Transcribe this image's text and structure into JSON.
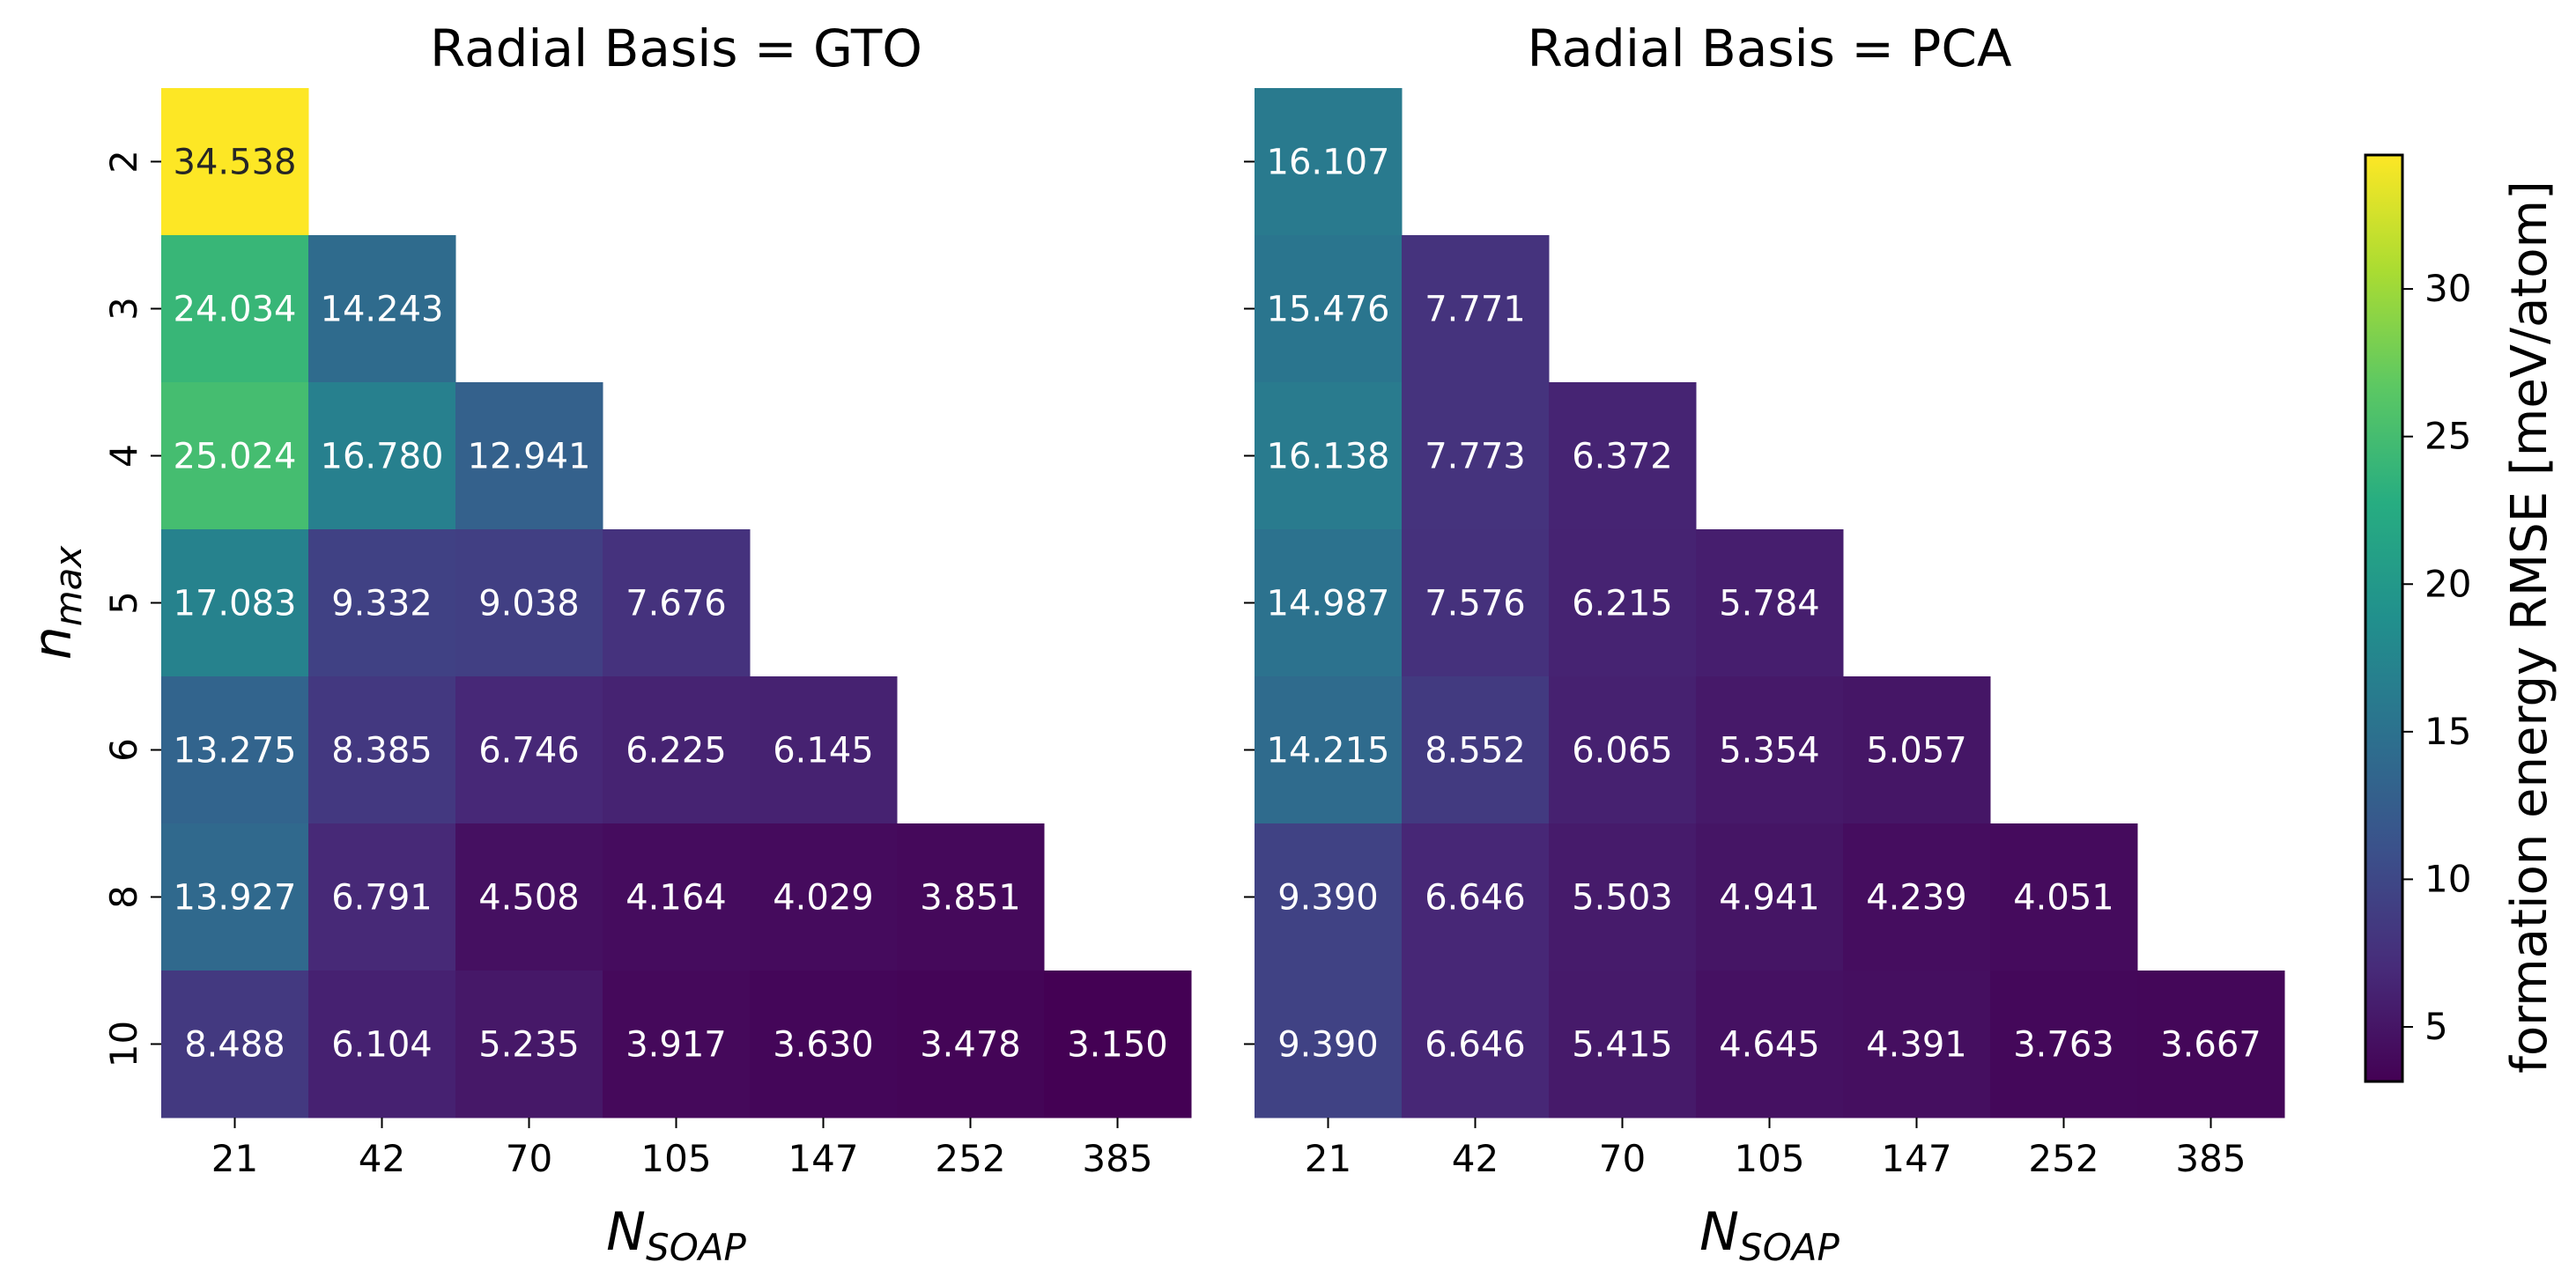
{
  "chart_data": [
    {
      "type": "heatmap",
      "title": "Radial Basis = GTO",
      "xlabel": "N_SOAP",
      "ylabel": "n_max",
      "x_categories": [
        "21",
        "42",
        "70",
        "105",
        "147",
        "252",
        "385"
      ],
      "y_categories": [
        "2",
        "3",
        "4",
        "5",
        "6",
        "8",
        "10"
      ],
      "values": [
        [
          34.538,
          null,
          null,
          null,
          null,
          null,
          null
        ],
        [
          24.034,
          14.243,
          null,
          null,
          null,
          null,
          null
        ],
        [
          25.024,
          16.78,
          12.941,
          null,
          null,
          null,
          null
        ],
        [
          17.083,
          9.332,
          9.038,
          7.676,
          null,
          null,
          null
        ],
        [
          13.275,
          8.385,
          6.746,
          6.225,
          6.145,
          null,
          null
        ],
        [
          13.927,
          6.791,
          4.508,
          4.164,
          4.029,
          3.851,
          null
        ],
        [
          8.488,
          6.104,
          5.235,
          3.917,
          3.63,
          3.478,
          3.15
        ]
      ],
      "value_labels": [
        [
          "34.538",
          null,
          null,
          null,
          null,
          null,
          null
        ],
        [
          "24.034",
          "14.243",
          null,
          null,
          null,
          null,
          null
        ],
        [
          "25.024",
          "16.780",
          "12.941",
          null,
          null,
          null,
          null
        ],
        [
          "17.083",
          "9.332",
          "9.038",
          "7.676",
          null,
          null,
          null
        ],
        [
          "13.275",
          "8.385",
          "6.746",
          "6.225",
          "6.145",
          null,
          null
        ],
        [
          "13.927",
          "6.791",
          "4.508",
          "4.164",
          "4.029",
          "3.851",
          null
        ],
        [
          "8.488",
          "6.104",
          "5.235",
          "3.917",
          "3.630",
          "3.478",
          "3.150"
        ]
      ]
    },
    {
      "type": "heatmap",
      "title": "Radial Basis = PCA",
      "xlabel": "N_SOAP",
      "ylabel": "",
      "x_categories": [
        "21",
        "42",
        "70",
        "105",
        "147",
        "252",
        "385"
      ],
      "y_categories": [
        "2",
        "3",
        "4",
        "5",
        "6",
        "8",
        "10"
      ],
      "values": [
        [
          16.107,
          null,
          null,
          null,
          null,
          null,
          null
        ],
        [
          15.476,
          7.771,
          null,
          null,
          null,
          null,
          null
        ],
        [
          16.138,
          7.773,
          6.372,
          null,
          null,
          null,
          null
        ],
        [
          14.987,
          7.576,
          6.215,
          5.784,
          null,
          null,
          null
        ],
        [
          14.215,
          8.552,
          6.065,
          5.354,
          5.057,
          null,
          null
        ],
        [
          9.39,
          6.646,
          5.503,
          4.941,
          4.239,
          4.051,
          null
        ],
        [
          9.39,
          6.646,
          5.415,
          4.645,
          4.391,
          3.763,
          3.667
        ]
      ],
      "value_labels": [
        [
          "16.107",
          null,
          null,
          null,
          null,
          null,
          null
        ],
        [
          "15.476",
          "7.771",
          null,
          null,
          null,
          null,
          null
        ],
        [
          "16.138",
          "7.773",
          "6.372",
          null,
          null,
          null,
          null
        ],
        [
          "14.987",
          "7.576",
          "6.215",
          "5.784",
          null,
          null,
          null
        ],
        [
          "14.215",
          "8.552",
          "6.065",
          "5.354",
          "5.057",
          null,
          null
        ],
        [
          "9.390",
          "6.646",
          "5.503",
          "4.941",
          "4.239",
          "4.051",
          null
        ],
        [
          "9.390",
          "6.646",
          "5.415",
          "4.645",
          "4.391",
          "3.763",
          "3.667"
        ]
      ]
    }
  ],
  "colorbar": {
    "label": "formation energy RMSE [meV/atom]",
    "vmin": 3.15,
    "vmax": 34.538,
    "ticks": [
      5,
      10,
      15,
      20,
      25,
      30
    ],
    "colormap": "viridis"
  },
  "axis_text": {
    "x_main": "N",
    "x_sub": "SOAP",
    "y_main": "n",
    "y_sub": "max"
  }
}
